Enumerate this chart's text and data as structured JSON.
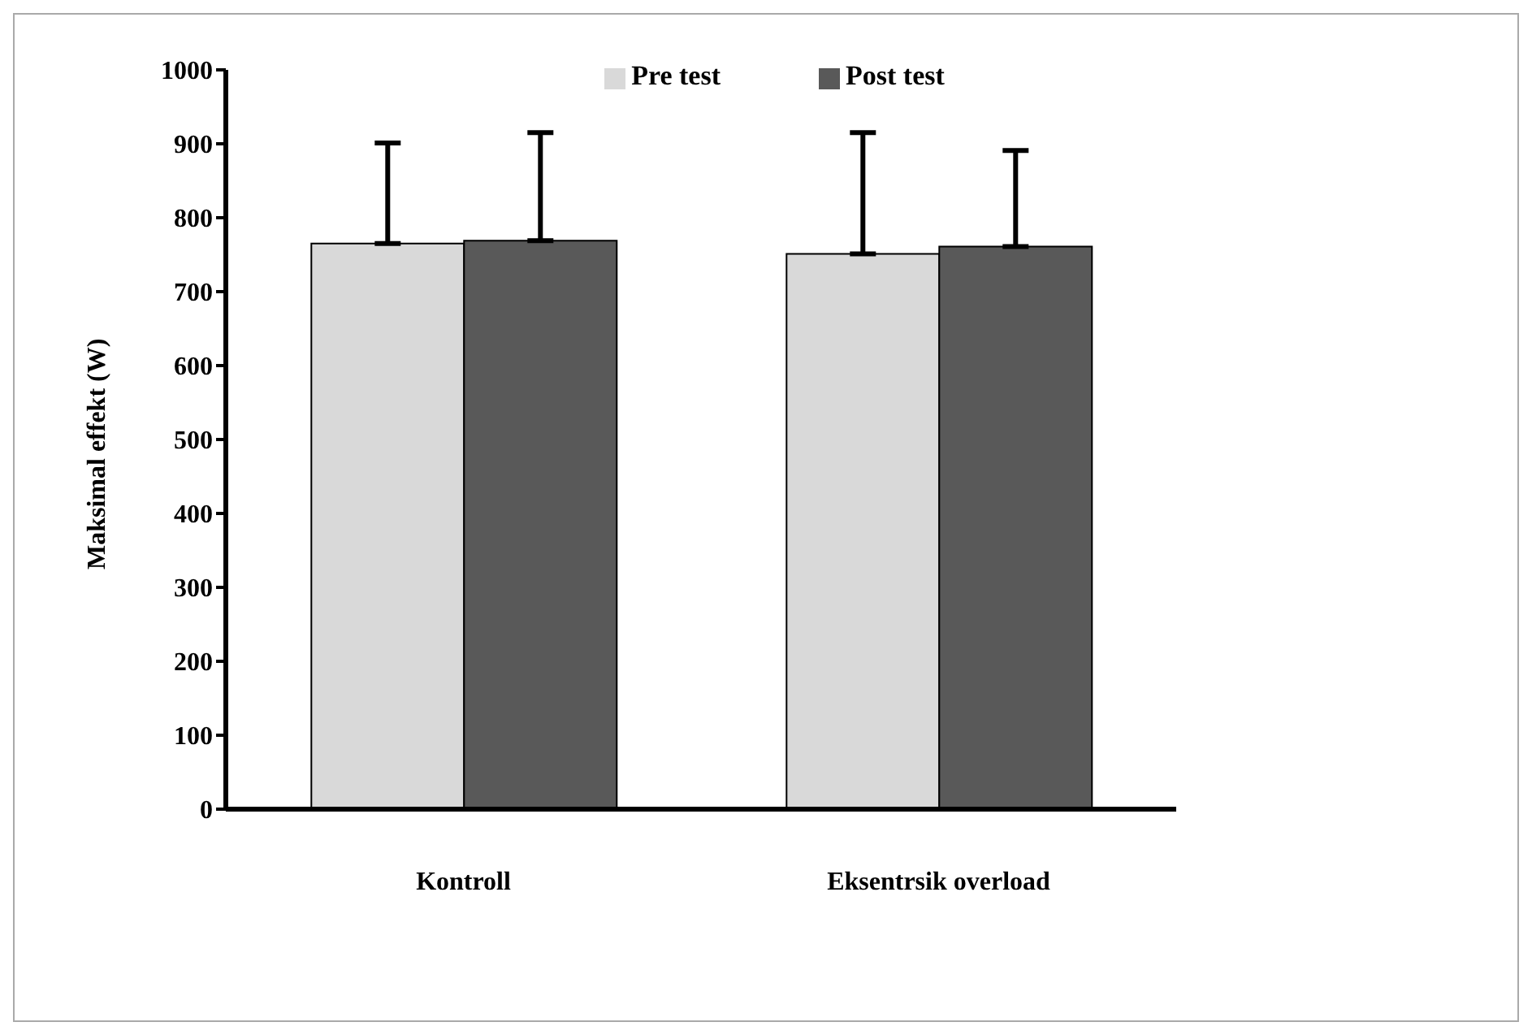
{
  "chart_data": {
    "type": "bar",
    "ylabel": "Maksimal effekt (W)",
    "categories": [
      "Kontroll",
      "Eksentrsik overload"
    ],
    "series": [
      {
        "name": "Pre test",
        "color": "#d9d9d9",
        "values": [
          765,
          751
        ],
        "errors": [
          [
            765,
            901
          ],
          [
            751,
            915
          ]
        ]
      },
      {
        "name": "Post test",
        "color": "#595959",
        "values": [
          769,
          761
        ],
        "errors": [
          [
            769,
            915
          ],
          [
            761,
            891
          ]
        ]
      }
    ],
    "ylim": [
      0,
      1000
    ],
    "yticks": [
      0,
      100,
      200,
      300,
      400,
      500,
      600,
      700,
      800,
      900,
      1000
    ],
    "grid": false,
    "legend": "top"
  }
}
